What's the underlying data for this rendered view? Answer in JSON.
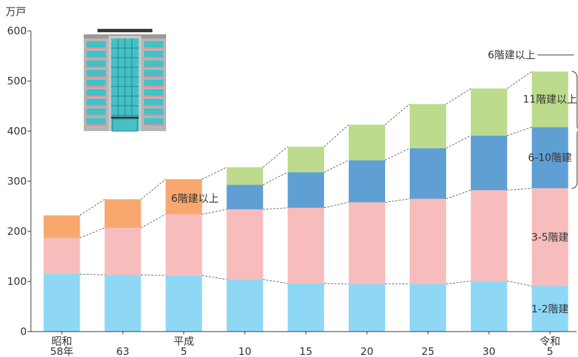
{
  "chart_data": {
    "type": "bar",
    "stacked": true,
    "ylabel": "万戸",
    "ylim": [
      0,
      600
    ],
    "yticks": [
      "0",
      "100",
      "200",
      "300",
      "400",
      "500",
      "600"
    ],
    "grid": false,
    "categories": [
      {
        "line1": "昭和",
        "line2": "58年"
      },
      {
        "line1": "",
        "line2": "63"
      },
      {
        "line1": "平成",
        "line2": "5"
      },
      {
        "line1": "",
        "line2": "10"
      },
      {
        "line1": "",
        "line2": "15"
      },
      {
        "line1": "",
        "line2": "20"
      },
      {
        "line1": "",
        "line2": "25"
      },
      {
        "line1": "",
        "line2": "30"
      },
      {
        "line1": "令和",
        "line2": "5"
      }
    ],
    "series": [
      {
        "name": "1-2階建",
        "color": "#8fd8f5",
        "values": [
          115,
          113,
          112,
          104,
          96,
          95,
          95,
          101,
          91
        ]
      },
      {
        "name": "3-5階建",
        "color": "#f7bcbc",
        "values": [
          72,
          94,
          122,
          140,
          151,
          163,
          170,
          181,
          195
        ]
      },
      {
        "name": "6階建以上",
        "color": "#f8a86e",
        "values": [
          45,
          57,
          70,
          null,
          null,
          null,
          null,
          null,
          null
        ]
      },
      {
        "name": "6-10階建",
        "color": "#5f9fd4",
        "values": [
          null,
          null,
          null,
          49,
          71,
          84,
          101,
          109,
          122
        ]
      },
      {
        "name": "11階建以上",
        "color": "#bcdb8c",
        "values": [
          null,
          null,
          null,
          35,
          51,
          71,
          88,
          94,
          111
        ]
      }
    ],
    "annotations": {
      "inline_label": "6階建以上",
      "right_labels": [
        {
          "text": "6階建以上",
          "series": "total"
        },
        {
          "text": "11階建以上",
          "series": "11階建以上"
        },
        {
          "text": "6-10階建",
          "series": "6-10階建"
        },
        {
          "text": "3-5階建",
          "series": "3-5階建"
        },
        {
          "text": "1-2階建",
          "series": "1-2階建"
        }
      ]
    }
  },
  "illustration": {
    "icon": "apartment-building-icon"
  }
}
